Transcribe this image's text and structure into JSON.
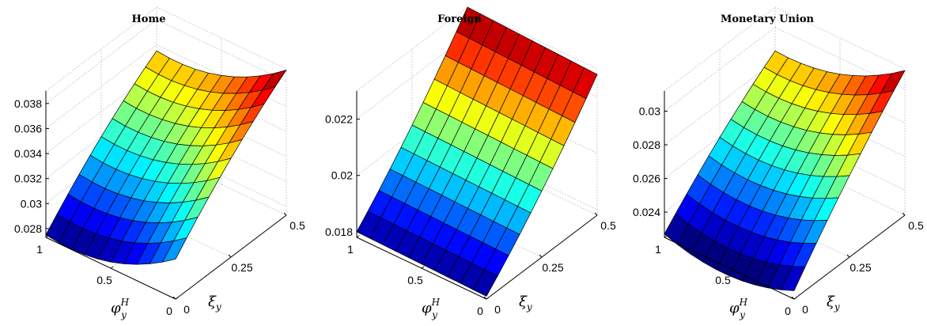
{
  "chart_data": [
    {
      "type": "surface",
      "title": "Home",
      "x_axis": {
        "label": "φ",
        "sup": "H",
        "sub": "y",
        "ticks": [
          "1",
          "0.5",
          "0"
        ],
        "range": [
          0,
          1
        ]
      },
      "y_axis": {
        "label": "ξ",
        "sub": "y",
        "ticks": [
          "0",
          "0.25",
          "0.5"
        ],
        "range": [
          0,
          0.5
        ]
      },
      "z_axis": {
        "ticks": [
          "0.028",
          "0.03",
          "0.032",
          "0.034",
          "0.036",
          "0.038"
        ],
        "range": [
          0.0273,
          0.039
        ]
      },
      "corners": {
        "phi1_xi0": 0.0275,
        "phi0_xi0": 0.0305,
        "phi1_xi05": 0.0355,
        "phi0_xi05": 0.0389
      },
      "curvature": {
        "phi": -0.0012,
        "xi": 0.0005
      },
      "color_range": [
        0.0275,
        0.0389
      ]
    },
    {
      "type": "surface",
      "title": "Foreign",
      "x_axis": {
        "label": "φ",
        "sup": "H",
        "sub": "y",
        "ticks": [
          "1",
          "0.5",
          "0"
        ],
        "range": [
          0,
          1
        ]
      },
      "y_axis": {
        "label": "ξ",
        "sub": "y",
        "ticks": [
          "0",
          "0.25",
          "0.5"
        ],
        "range": [
          0,
          0.5
        ]
      },
      "z_axis": {
        "ticks": [
          "0.018",
          "0.02",
          "0.022"
        ],
        "range": [
          0.0178,
          0.023
        ]
      },
      "corners": {
        "phi1_xi0": 0.018,
        "phi0_xi0": 0.0179,
        "phi1_xi05": 0.023,
        "phi0_xi05": 0.0228
      },
      "curvature": {
        "phi": 0.0,
        "xi": -0.0002
      },
      "color_range": [
        0.0179,
        0.023
      ]
    },
    {
      "type": "surface",
      "title": "Monetary Union",
      "x_axis": {
        "label": "φ",
        "sup": "H",
        "sub": "y",
        "ticks": [
          "1",
          "0.5",
          "0"
        ],
        "range": [
          0,
          1
        ]
      },
      "y_axis": {
        "label": "ξ",
        "sub": "y",
        "ticks": [
          "0",
          "0.25",
          "0.5"
        ],
        "range": [
          0,
          0.5
        ]
      },
      "z_axis": {
        "ticks": [
          "0.024",
          "0.026",
          "0.028",
          "0.03"
        ],
        "range": [
          0.0225,
          0.0312
        ]
      },
      "corners": {
        "phi1_xi0": 0.0227,
        "phi0_xi0": 0.023,
        "phi1_xi05": 0.0286,
        "phi0_xi05": 0.0311
      },
      "curvature": {
        "phi": -0.0008,
        "xi": 0.0003
      },
      "color_range": [
        0.0227,
        0.0311
      ]
    }
  ]
}
